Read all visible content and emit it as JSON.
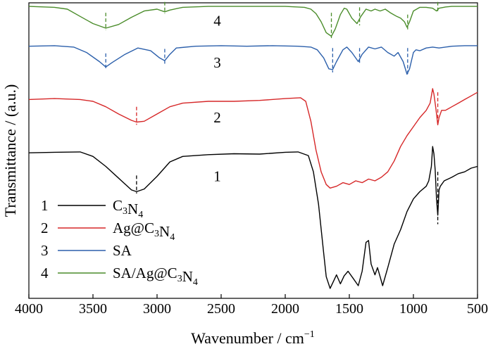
{
  "chart_data": {
    "type": "line",
    "xlabel": "Wavenumber / cm",
    "xlabel_sup": "−1",
    "ylabel": "Transmittance / (a.u.)",
    "xlim": [
      4000,
      500
    ],
    "x_reversed": true,
    "xticks": [
      4000,
      3500,
      3000,
      2500,
      2000,
      1500,
      1000,
      500
    ],
    "y_ticks_shown": false,
    "series": [
      {
        "name": "C3N4",
        "legend_number": "1",
        "curve_label": "1",
        "color": "#000000",
        "points": [
          [
            4000,
            0.405
          ],
          [
            3800,
            0.408
          ],
          [
            3600,
            0.41
          ],
          [
            3500,
            0.385
          ],
          [
            3400,
            0.33
          ],
          [
            3300,
            0.265
          ],
          [
            3200,
            0.2
          ],
          [
            3160,
            0.19
          ],
          [
            3100,
            0.205
          ],
          [
            3000,
            0.275
          ],
          [
            2900,
            0.355
          ],
          [
            2800,
            0.385
          ],
          [
            2600,
            0.395
          ],
          [
            2400,
            0.4
          ],
          [
            2200,
            0.398
          ],
          [
            2000,
            0.408
          ],
          [
            1900,
            0.41
          ],
          [
            1820,
            0.39
          ],
          [
            1780,
            0.3
          ],
          [
            1740,
            0.12
          ],
          [
            1700,
            -0.15
          ],
          [
            1680,
            -0.28
          ],
          [
            1650,
            -0.345
          ],
          [
            1620,
            -0.3
          ],
          [
            1600,
            -0.27
          ],
          [
            1570,
            -0.32
          ],
          [
            1540,
            -0.275
          ],
          [
            1510,
            -0.25
          ],
          [
            1470,
            -0.29
          ],
          [
            1430,
            -0.33
          ],
          [
            1400,
            -0.25
          ],
          [
            1370,
            -0.09
          ],
          [
            1350,
            -0.08
          ],
          [
            1330,
            -0.21
          ],
          [
            1300,
            -0.27
          ],
          [
            1280,
            -0.23
          ],
          [
            1260,
            -0.28
          ],
          [
            1240,
            -0.33
          ],
          [
            1200,
            -0.23
          ],
          [
            1150,
            -0.1
          ],
          [
            1100,
            -0.02
          ],
          [
            1050,
            0.08
          ],
          [
            1000,
            0.15
          ],
          [
            950,
            0.19
          ],
          [
            900,
            0.22
          ],
          [
            880,
            0.25
          ],
          [
            860,
            0.33
          ],
          [
            850,
            0.44
          ],
          [
            840,
            0.4
          ],
          [
            830,
            0.31
          ],
          [
            820,
            0.15
          ],
          [
            810,
            0.06
          ],
          [
            800,
            0.2
          ],
          [
            790,
            0.22
          ],
          [
            760,
            0.25
          ],
          [
            700,
            0.27
          ],
          [
            650,
            0.29
          ],
          [
            600,
            0.3
          ],
          [
            550,
            0.32
          ],
          [
            500,
            0.33
          ]
        ]
      },
      {
        "name": "Ag@C3N4",
        "legend_number": "2",
        "curve_label": "2",
        "color": "#d62728",
        "points": [
          [
            4000,
            0.7
          ],
          [
            3800,
            0.705
          ],
          [
            3600,
            0.7
          ],
          [
            3500,
            0.69
          ],
          [
            3400,
            0.66
          ],
          [
            3300,
            0.62
          ],
          [
            3200,
            0.585
          ],
          [
            3160,
            0.575
          ],
          [
            3100,
            0.58
          ],
          [
            3000,
            0.62
          ],
          [
            2900,
            0.66
          ],
          [
            2800,
            0.68
          ],
          [
            2600,
            0.69
          ],
          [
            2400,
            0.69
          ],
          [
            2200,
            0.695
          ],
          [
            2000,
            0.705
          ],
          [
            1880,
            0.71
          ],
          [
            1840,
            0.69
          ],
          [
            1800,
            0.58
          ],
          [
            1760,
            0.42
          ],
          [
            1720,
            0.3
          ],
          [
            1680,
            0.23
          ],
          [
            1650,
            0.21
          ],
          [
            1600,
            0.22
          ],
          [
            1550,
            0.24
          ],
          [
            1500,
            0.23
          ],
          [
            1450,
            0.25
          ],
          [
            1400,
            0.24
          ],
          [
            1350,
            0.26
          ],
          [
            1300,
            0.25
          ],
          [
            1250,
            0.27
          ],
          [
            1200,
            0.3
          ],
          [
            1150,
            0.36
          ],
          [
            1100,
            0.44
          ],
          [
            1050,
            0.5
          ],
          [
            1000,
            0.55
          ],
          [
            950,
            0.6
          ],
          [
            900,
            0.64
          ],
          [
            870,
            0.68
          ],
          [
            850,
            0.76
          ],
          [
            840,
            0.73
          ],
          [
            825,
            0.65
          ],
          [
            810,
            0.56
          ],
          [
            800,
            0.6
          ],
          [
            780,
            0.64
          ],
          [
            750,
            0.64
          ],
          [
            700,
            0.66
          ],
          [
            650,
            0.68
          ],
          [
            600,
            0.7
          ],
          [
            550,
            0.72
          ],
          [
            500,
            0.74
          ]
        ]
      },
      {
        "name": "SA",
        "legend_number": "3",
        "curve_label": "3",
        "color": "#2b5fab",
        "points": [
          [
            4000,
            0.995
          ],
          [
            3800,
            0.998
          ],
          [
            3650,
            0.99
          ],
          [
            3550,
            0.96
          ],
          [
            3450,
            0.91
          ],
          [
            3400,
            0.88
          ],
          [
            3350,
            0.905
          ],
          [
            3250,
            0.95
          ],
          [
            3150,
            0.985
          ],
          [
            3050,
            0.97
          ],
          [
            2980,
            0.93
          ],
          [
            2940,
            0.915
          ],
          [
            2900,
            0.95
          ],
          [
            2850,
            0.985
          ],
          [
            2700,
            0.995
          ],
          [
            2500,
            0.998
          ],
          [
            2300,
            0.995
          ],
          [
            2100,
            0.998
          ],
          [
            1900,
            0.995
          ],
          [
            1800,
            0.99
          ],
          [
            1750,
            0.975
          ],
          [
            1700,
            0.93
          ],
          [
            1660,
            0.87
          ],
          [
            1630,
            0.865
          ],
          [
            1600,
            0.91
          ],
          [
            1550,
            0.975
          ],
          [
            1520,
            0.99
          ],
          [
            1480,
            0.96
          ],
          [
            1430,
            0.91
          ],
          [
            1400,
            0.95
          ],
          [
            1350,
            0.99
          ],
          [
            1300,
            0.98
          ],
          [
            1250,
            0.99
          ],
          [
            1200,
            0.96
          ],
          [
            1150,
            0.94
          ],
          [
            1120,
            0.96
          ],
          [
            1080,
            0.91
          ],
          [
            1050,
            0.84
          ],
          [
            1030,
            0.87
          ],
          [
            1000,
            0.96
          ],
          [
            980,
            0.975
          ],
          [
            950,
            0.97
          ],
          [
            900,
            0.985
          ],
          [
            850,
            0.99
          ],
          [
            800,
            0.985
          ],
          [
            700,
            0.995
          ],
          [
            600,
            0.998
          ],
          [
            500,
            0.998
          ]
        ]
      },
      {
        "name": "SA/Ag@C3N4",
        "legend_number": "4",
        "curve_label": "4",
        "color": "#4a8c2a",
        "points": [
          [
            4000,
            1.215
          ],
          [
            3800,
            1.21
          ],
          [
            3700,
            1.2
          ],
          [
            3600,
            1.16
          ],
          [
            3500,
            1.12
          ],
          [
            3400,
            1.095
          ],
          [
            3300,
            1.115
          ],
          [
            3200,
            1.155
          ],
          [
            3100,
            1.19
          ],
          [
            3000,
            1.2
          ],
          [
            2940,
            1.185
          ],
          [
            2900,
            1.195
          ],
          [
            2800,
            1.21
          ],
          [
            2600,
            1.215
          ],
          [
            2400,
            1.215
          ],
          [
            2200,
            1.215
          ],
          [
            2000,
            1.215
          ],
          [
            1850,
            1.21
          ],
          [
            1800,
            1.2
          ],
          [
            1760,
            1.175
          ],
          [
            1720,
            1.13
          ],
          [
            1680,
            1.07
          ],
          [
            1640,
            1.05
          ],
          [
            1610,
            1.09
          ],
          [
            1570,
            1.17
          ],
          [
            1540,
            1.205
          ],
          [
            1520,
            1.2
          ],
          [
            1480,
            1.15
          ],
          [
            1440,
            1.12
          ],
          [
            1410,
            1.16
          ],
          [
            1370,
            1.2
          ],
          [
            1330,
            1.19
          ],
          [
            1300,
            1.2
          ],
          [
            1260,
            1.19
          ],
          [
            1220,
            1.2
          ],
          [
            1180,
            1.18
          ],
          [
            1130,
            1.16
          ],
          [
            1100,
            1.15
          ],
          [
            1070,
            1.13
          ],
          [
            1050,
            1.1
          ],
          [
            1030,
            1.13
          ],
          [
            1000,
            1.19
          ],
          [
            950,
            1.21
          ],
          [
            900,
            1.21
          ],
          [
            850,
            1.205
          ],
          [
            820,
            1.19
          ],
          [
            800,
            1.205
          ],
          [
            750,
            1.212
          ],
          [
            700,
            1.215
          ],
          [
            600,
            1.215
          ],
          [
            500,
            1.215
          ]
        ]
      }
    ],
    "reference_lines": [
      {
        "x": 3400,
        "color": "#2b5fab",
        "y_top": 0.955,
        "y_bottom": 0.87
      },
      {
        "x": 2940,
        "color": "#2b5fab",
        "y_top": 0.98,
        "y_bottom": 0.89
      },
      {
        "x": 1630,
        "color": "#2b5fab",
        "y_top": 0.985,
        "y_bottom": 0.85
      },
      {
        "x": 1420,
        "color": "#2b5fab",
        "y_top": 0.985,
        "y_bottom": 0.895
      },
      {
        "x": 1045,
        "color": "#2b5fab",
        "y_top": 0.985,
        "y_bottom": 0.83
      },
      {
        "x": 3400,
        "color": "#4a8c2a",
        "y_top": 1.18,
        "y_bottom": 1.085
      },
      {
        "x": 2940,
        "color": "#4a8c2a",
        "y_top": 1.24,
        "y_bottom": 1.175
      },
      {
        "x": 1640,
        "color": "#4a8c2a",
        "y_top": 1.18,
        "y_bottom": 1.04
      },
      {
        "x": 1420,
        "color": "#4a8c2a",
        "y_top": 1.21,
        "y_bottom": 1.11
      },
      {
        "x": 1045,
        "color": "#4a8c2a",
        "y_top": 1.17,
        "y_bottom": 1.085
      },
      {
        "x": 810,
        "color": "#4a8c2a",
        "y_top": 1.24,
        "y_bottom": 1.18
      },
      {
        "x": 3160,
        "color": "#d62728",
        "y_top": 0.66,
        "y_bottom": 0.56
      },
      {
        "x": 810,
        "color": "#d62728",
        "y_top": 0.74,
        "y_bottom": 0.56
      },
      {
        "x": 3160,
        "color": "#000000",
        "y_top": 0.28,
        "y_bottom": 0.18
      },
      {
        "x": 810,
        "color": "#000000",
        "y_top": 0.3,
        "y_bottom": 0.01
      }
    ],
    "legend": {
      "position": "bottom-left",
      "entries": [
        {
          "number": "1",
          "color": "#000000",
          "parts": [
            [
              "C",
              ""
            ],
            [
              "3",
              "sub"
            ],
            [
              "N",
              ""
            ],
            [
              "4",
              "sub"
            ]
          ]
        },
        {
          "number": "2",
          "color": "#d62728",
          "parts": [
            [
              "Ag@C",
              ""
            ],
            [
              "3",
              "sub"
            ],
            [
              "N",
              ""
            ],
            [
              "4",
              "sub"
            ]
          ]
        },
        {
          "number": "3",
          "color": "#2b5fab",
          "parts": [
            [
              "SA",
              ""
            ]
          ]
        },
        {
          "number": "4",
          "color": "#4a8c2a",
          "parts": [
            [
              "SA/Ag@C",
              ""
            ],
            [
              "3",
              "sub"
            ],
            [
              "N",
              ""
            ],
            [
              "4",
              "sub"
            ]
          ]
        }
      ]
    },
    "grid": false
  }
}
